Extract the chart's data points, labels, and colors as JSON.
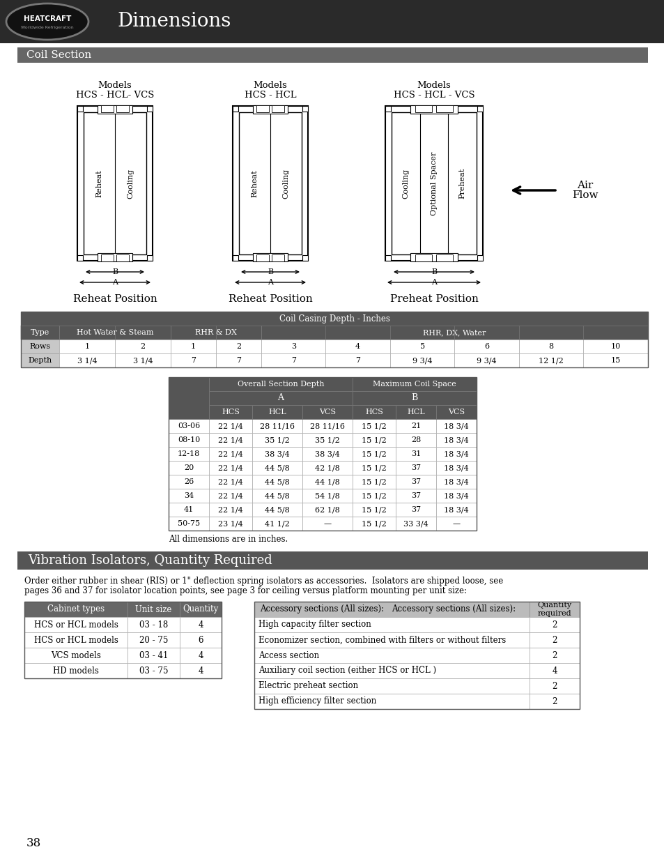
{
  "title": "Dimensions",
  "page_number": "38",
  "coil_section_title": "Coil Section",
  "vibration_title": "Vibration Isolators, Quantity Required",
  "header_bg": "#2a2a2a",
  "section_bg": "#666666",
  "table1_header": "Coil Casing Depth - Inches",
  "table1_row1": [
    "Rows",
    "1",
    "2",
    "1",
    "2",
    "3",
    "4",
    "5",
    "6",
    "8",
    "10"
  ],
  "table1_row2": [
    "Depth",
    "3 1/4",
    "3 1/4",
    "7",
    "7",
    "7",
    "7",
    "9 3/4",
    "9 3/4",
    "12 1/2",
    "15"
  ],
  "table2_rows": [
    [
      "03-06",
      "22 1/4",
      "28 11/16",
      "28 11/16",
      "15 1/2",
      "21",
      "18 3/4"
    ],
    [
      "08-10",
      "22 1/4",
      "35 1/2",
      "35 1/2",
      "15 1/2",
      "28",
      "18 3/4"
    ],
    [
      "12-18",
      "22 1/4",
      "38 3/4",
      "38 3/4",
      "15 1/2",
      "31",
      "18 3/4"
    ],
    [
      "20",
      "22 1/4",
      "44 5/8",
      "42 1/8",
      "15 1/2",
      "37",
      "18 3/4"
    ],
    [
      "26",
      "22 1/4",
      "44 5/8",
      "44 1/8",
      "15 1/2",
      "37",
      "18 3/4"
    ],
    [
      "34",
      "22 1/4",
      "44 5/8",
      "54 1/8",
      "15 1/2",
      "37",
      "18 3/4"
    ],
    [
      "41",
      "22 1/4",
      "44 5/8",
      "62 1/8",
      "15 1/2",
      "37",
      "18 3/4"
    ],
    [
      "50-75",
      "23 1/4",
      "41 1/2",
      "—",
      "15 1/2",
      "33 3/4",
      "—"
    ]
  ],
  "vibration_text1": "Order either rubber in shear (RIS) or 1\" deflection spring isolators as accessories.  Isolators are shipped loose, see",
  "vibration_text2": "pages 36 and 37 for isolator location points, see page 3 for ceiling versus platform mounting per unit size:",
  "vib_table1_headers": [
    "Cabinet types",
    "Unit size",
    "Quantity"
  ],
  "vib_table1_rows": [
    [
      "HCS or HCL models",
      "03 - 18",
      "4"
    ],
    [
      "HCS or HCL models",
      "20 - 75",
      "6"
    ],
    [
      "VCS models",
      "03 - 41",
      "4"
    ],
    [
      "HD models",
      "03 - 75",
      "4"
    ]
  ],
  "vib_table2_header1": "Accessory sections (All sizes):",
  "vib_table2_header2": "Quantity\nrequired",
  "vib_table2_rows": [
    [
      "High capacity filter section",
      "2"
    ],
    [
      "Economizer section, combined with filters or without filters",
      "2"
    ],
    [
      "Access section",
      "2"
    ],
    [
      "Auxiliary coil section (either HCS or HCL )",
      "4"
    ],
    [
      "Electric preheat section",
      "2"
    ],
    [
      "High efficiency filter section",
      "2"
    ]
  ],
  "all_dims_note": "All dimensions are in inches."
}
